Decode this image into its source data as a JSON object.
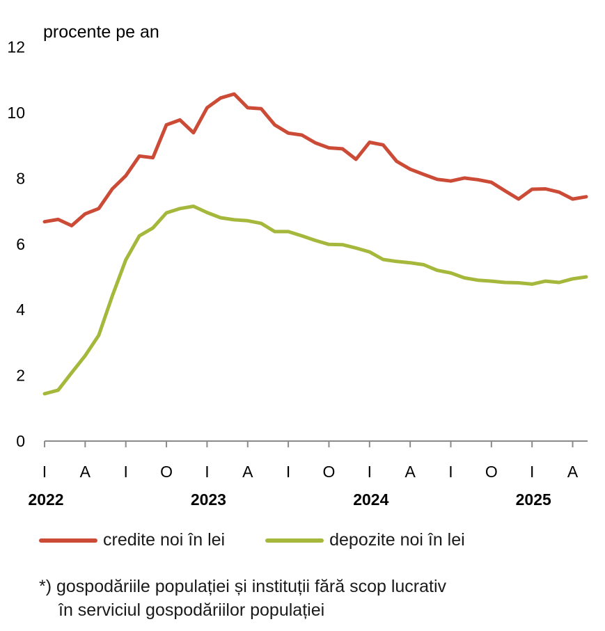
{
  "chart_data": {
    "type": "line",
    "ylabel": "procente pe an",
    "ylim": [
      0,
      12
    ],
    "yticks": [
      0,
      2,
      4,
      6,
      8,
      10,
      12
    ],
    "month_labels": [
      "I",
      "A",
      "I",
      "O",
      "I",
      "A",
      "I",
      "O",
      "I",
      "A",
      "I",
      "O",
      "I",
      "A"
    ],
    "years": [
      {
        "label": "2022",
        "at_index": 0
      },
      {
        "label": "2023",
        "at_index": 12
      },
      {
        "label": "2024",
        "at_index": 24
      },
      {
        "label": "2025",
        "at_index": 36
      }
    ],
    "x": [
      "2022-01",
      "2022-02",
      "2022-03",
      "2022-04",
      "2022-05",
      "2022-06",
      "2022-07",
      "2022-08",
      "2022-09",
      "2022-10",
      "2022-11",
      "2022-12",
      "2023-01",
      "2023-02",
      "2023-03",
      "2023-04",
      "2023-05",
      "2023-06",
      "2023-07",
      "2023-08",
      "2023-09",
      "2023-10",
      "2023-11",
      "2023-12",
      "2024-01",
      "2024-02",
      "2024-03",
      "2024-04",
      "2024-05",
      "2024-06",
      "2024-07",
      "2024-08",
      "2024-09",
      "2024-10",
      "2024-11",
      "2024-12",
      "2025-01",
      "2025-02",
      "2025-03",
      "2025-04",
      "2025-05"
    ],
    "series": [
      {
        "name": "credite noi în lei",
        "color": "#cc4b37",
        "values": [
          6.68,
          6.75,
          6.56,
          6.92,
          7.08,
          7.68,
          8.08,
          8.68,
          8.63,
          9.63,
          9.78,
          9.39,
          10.15,
          10.45,
          10.57,
          10.15,
          10.12,
          9.63,
          9.38,
          9.32,
          9.08,
          8.93,
          8.9,
          8.58,
          9.1,
          9.02,
          8.52,
          8.28,
          8.12,
          7.97,
          7.92,
          8.01,
          7.96,
          7.88,
          7.62,
          7.37,
          7.67,
          7.68,
          7.58,
          7.37,
          7.44
        ]
      },
      {
        "name": "depozite noi în lei",
        "color": "#a6b83c",
        "values": [
          1.44,
          1.55,
          2.08,
          2.6,
          3.22,
          4.42,
          5.52,
          6.25,
          6.49,
          6.95,
          7.08,
          7.15,
          6.96,
          6.8,
          6.74,
          6.71,
          6.63,
          6.38,
          6.38,
          6.25,
          6.11,
          5.99,
          5.98,
          5.88,
          5.76,
          5.53,
          5.47,
          5.43,
          5.37,
          5.2,
          5.12,
          4.97,
          4.9,
          4.87,
          4.83,
          4.82,
          4.78,
          4.87,
          4.83,
          4.94,
          5.0
        ]
      }
    ]
  },
  "legend": {
    "credit_label": "credite noi în lei",
    "deposit_label": "depozite noi în lei",
    "credit_color": "#cc4b37",
    "deposit_color": "#a6b83c"
  },
  "footnote": {
    "line1": "*) gospodăriile populației și instituții fără scop lucrativ",
    "line2": "în serviciul gospodăriilor populației"
  }
}
